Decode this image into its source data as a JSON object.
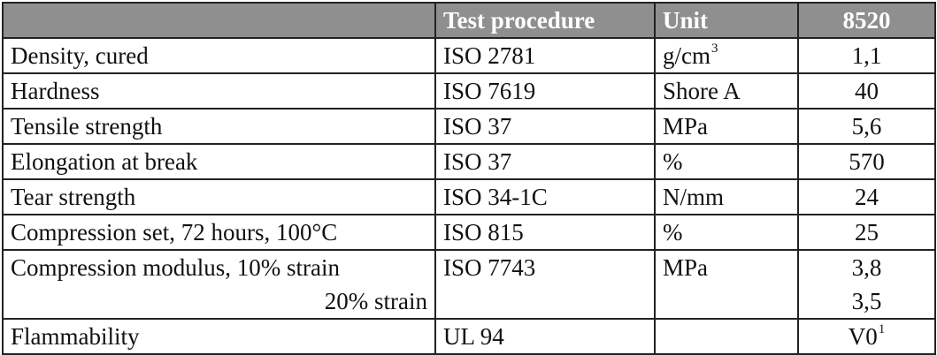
{
  "header": {
    "property": "",
    "test_procedure": "Test procedure",
    "unit": "Unit",
    "value": "8520"
  },
  "rows": [
    {
      "property": "Density, cured",
      "test": "ISO 2781",
      "unit": "g/cm",
      "unit_sup": "3",
      "value": "1,1"
    },
    {
      "property": "Hardness",
      "test": "ISO 7619",
      "unit": "Shore A",
      "value": "40"
    },
    {
      "property": "Tensile strength",
      "test": "ISO 37",
      "unit": "MPa",
      "value": "5,6"
    },
    {
      "property": "Elongation at break",
      "test": "ISO 37",
      "unit": "%",
      "value": "570"
    },
    {
      "property": "Tear strength",
      "test": "ISO 34-1C",
      "unit": "N/mm",
      "value": "24"
    },
    {
      "property": "Compression set, 72 hours, 100°C",
      "test": "ISO 815",
      "unit": "%",
      "value": "25"
    },
    {
      "property": "Compression modulus, 10% strain",
      "property_line2": "20% strain",
      "test": "ISO 7743",
      "unit": "MPa",
      "value": "3,8",
      "value_line2": "3,5"
    },
    {
      "property": "Flammability",
      "test": "UL 94",
      "unit": "",
      "value": "V0",
      "value_sup": "1"
    }
  ]
}
